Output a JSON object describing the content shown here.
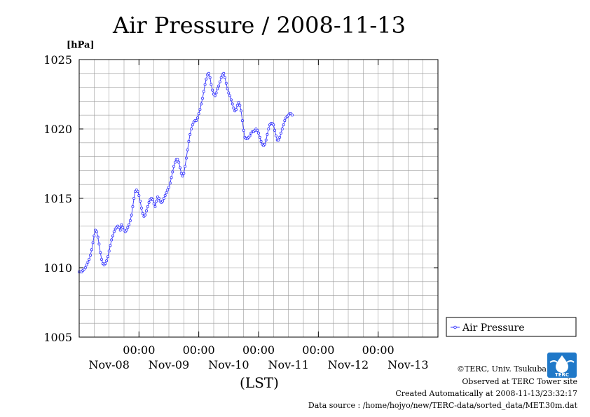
{
  "chart_data": {
    "type": "line",
    "title": "Air Pressure / 2008-11-13",
    "ylabel": "[hPa]",
    "xlabel": "(LST)",
    "ylim": [
      1005,
      1025
    ],
    "y_ticks": [
      "1025",
      "1020",
      "1015",
      "1010",
      "1005"
    ],
    "x_time_labels": [
      "00:00",
      "00:00",
      "00:00",
      "00:00",
      "00:00"
    ],
    "x_date_labels": [
      "Nov-08",
      "Nov-09",
      "Nov-10",
      "Nov-11",
      "Nov-12",
      "Nov-13"
    ],
    "grid": true,
    "legend_position": "right",
    "x_range": [
      "2008-11-08 00:00",
      "2008-11-13 23:30"
    ],
    "series": [
      {
        "name": "Air Pressure",
        "color": "#3333ff",
        "interval_minutes": 30,
        "values": [
          1009.7,
          1009.7,
          1009.7,
          1009.8,
          1009.9,
          1010.0,
          1010.2,
          1010.4,
          1010.6,
          1010.9,
          1011.3,
          1011.8,
          1012.3,
          1012.7,
          1012.6,
          1012.2,
          1011.7,
          1011.1,
          1010.6,
          1010.3,
          1010.2,
          1010.3,
          1010.5,
          1010.8,
          1011.2,
          1011.6,
          1012.0,
          1012.3,
          1012.6,
          1012.8,
          1012.9,
          1013.0,
          1012.9,
          1012.7,
          1013.1,
          1012.9,
          1012.7,
          1012.6,
          1012.7,
          1012.9,
          1013.1,
          1013.4,
          1013.8,
          1014.4,
          1015.0,
          1015.5,
          1015.6,
          1015.5,
          1015.2,
          1014.8,
          1014.3,
          1013.9,
          1013.7,
          1013.8,
          1014.1,
          1014.4,
          1014.7,
          1014.9,
          1015.0,
          1014.9,
          1014.6,
          1014.4,
          1014.8,
          1015.1,
          1015.0,
          1014.8,
          1014.7,
          1014.8,
          1015.0,
          1015.2,
          1015.4,
          1015.6,
          1015.8,
          1016.1,
          1016.5,
          1016.9,
          1017.3,
          1017.6,
          1017.8,
          1017.8,
          1017.6,
          1017.2,
          1016.8,
          1016.6,
          1016.8,
          1017.3,
          1017.9,
          1018.5,
          1019.1,
          1019.6,
          1020.0,
          1020.3,
          1020.5,
          1020.6,
          1020.6,
          1020.8,
          1021.1,
          1021.4,
          1021.8,
          1022.2,
          1022.7,
          1023.2,
          1023.6,
          1023.9,
          1024.0,
          1023.7,
          1023.2,
          1022.8,
          1022.5,
          1022.4,
          1022.6,
          1022.9,
          1023.1,
          1023.4,
          1023.7,
          1023.9,
          1024.0,
          1023.7,
          1023.3,
          1022.9,
          1022.6,
          1022.4,
          1022.1,
          1021.8,
          1021.5,
          1021.3,
          1021.4,
          1021.7,
          1021.9,
          1021.7,
          1021.3,
          1020.6,
          1019.9,
          1019.4,
          1019.3,
          1019.3,
          1019.4,
          1019.5,
          1019.7,
          1019.8,
          1019.8,
          1019.9,
          1020.0,
          1019.9,
          1019.7,
          1019.4,
          1019.1,
          1018.9,
          1018.8,
          1018.9,
          1019.2,
          1019.6,
          1020.0,
          1020.3,
          1020.4,
          1020.4,
          1020.3,
          1019.9,
          1019.5,
          1019.2,
          1019.2,
          1019.4,
          1019.7,
          1020.0,
          1020.3,
          1020.6,
          1020.8,
          1020.9,
          1021.0,
          1021.1,
          1021.1,
          1021.0
        ]
      }
    ]
  },
  "legend": {
    "label": "Air Pressure"
  },
  "credits": {
    "org": "©TERC, Univ. Tsukuba",
    "site": "Observed at TERC Tower site",
    "created": "Created Automatically at 2008-11-13/23:32:17",
    "source": "Data source : /home/hojyo/new/TERC-data/sorted_data/MET.30m.dat"
  },
  "logo": {
    "text": "TERC",
    "icon": "terc-logo-icon",
    "color": "#1f78c8"
  }
}
